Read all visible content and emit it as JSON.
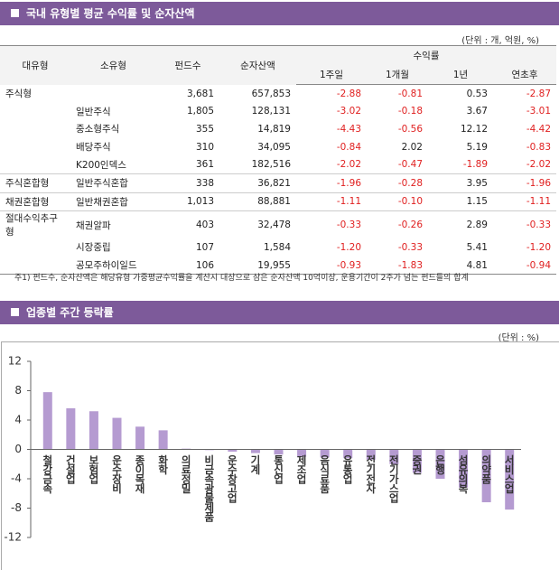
{
  "section1": {
    "title": "국내 유형별 평균 수익률 및 순자산액",
    "unit": "(단위 : 개, 억원, %)",
    "note": "주1) 펀드수, 순자산액은 해당유형 가중평균수익률을 계산시 대상으로 삼은 순자산액 10억이상, 운용기간이 2주가 넘는 펀드들의 합계"
  },
  "table": {
    "headers": [
      "대유형",
      "소유형",
      "펀드수",
      "순자산액",
      "수익률"
    ],
    "subheaders": [
      "1주일",
      "1개월",
      "1년",
      "연초후"
    ],
    "rows": [
      [
        "주식형",
        null,
        "3,681",
        "657,853",
        "-2.88",
        "-0.81",
        "0.53",
        "-2.87"
      ],
      [
        null,
        "일반주식",
        "1,805",
        "128,131",
        "-3.02",
        "-0.18",
        "3.67",
        "-3.01"
      ],
      [
        null,
        "중소형주식",
        "355",
        "14,819",
        "-4.43",
        "-0.56",
        "12.12",
        "-4.42"
      ],
      [
        null,
        "배당주식",
        "310",
        "34,095",
        "-0.84",
        "2.02",
        "5.19",
        "-0.83"
      ],
      [
        null,
        "K200인덱스",
        "361",
        "182,516",
        "-2.02",
        "-0.47",
        "-1.89",
        "-2.02"
      ],
      [
        "주식혼합형",
        "일반주식혼합",
        "338",
        "36,821",
        "-1.96",
        "-0.28",
        "3.95",
        "-1.96"
      ],
      [
        "채권혼합형",
        "일반채권혼합",
        "1,013",
        "88,881",
        "-1.11",
        "-0.10",
        "1.15",
        "-1.11"
      ],
      [
        "절대수익추구형",
        "채권알파",
        "403",
        "32,478",
        "-0.33",
        "-0.26",
        "2.89",
        "-0.33"
      ],
      [
        null,
        "시장중립",
        "107",
        "1,584",
        "-1.20",
        "-0.33",
        "5.41",
        "-1.20"
      ],
      [
        null,
        "공모주하이일드",
        "106",
        "19,955",
        "-0.93",
        "-1.83",
        "4.81",
        "-0.94"
      ]
    ]
  },
  "section2": {
    "title": "업종별 주간 등락률",
    "unit": "(단위 : %)"
  },
  "chart_data": {
    "type": "bar",
    "categories": [
      "철강금속",
      "건설업",
      "보험업",
      "운수장비",
      "종이목재",
      "화학",
      "의료정밀",
      "비금속광물제품",
      "운수창고업",
      "기계",
      "통신업",
      "제조업",
      "음식료품",
      "유통업",
      "전기전자",
      "전기가스업",
      "증권",
      "은행",
      "섬유의복",
      "의약품",
      "서비스업"
    ],
    "values": [
      7.8,
      5.6,
      5.2,
      4.3,
      3.1,
      2.6,
      0.1,
      -0.1,
      -0.3,
      -0.5,
      -0.7,
      -1.0,
      -1.1,
      -1.2,
      -1.4,
      -2.0,
      -3.2,
      -4.0,
      -5.2,
      -7.2,
      -8.2
    ],
    "color": "#b59bd1",
    "ylim": [
      -12,
      12
    ],
    "yticks": [
      -12,
      -8,
      -4,
      0,
      4,
      8,
      12
    ],
    "grid": false
  }
}
